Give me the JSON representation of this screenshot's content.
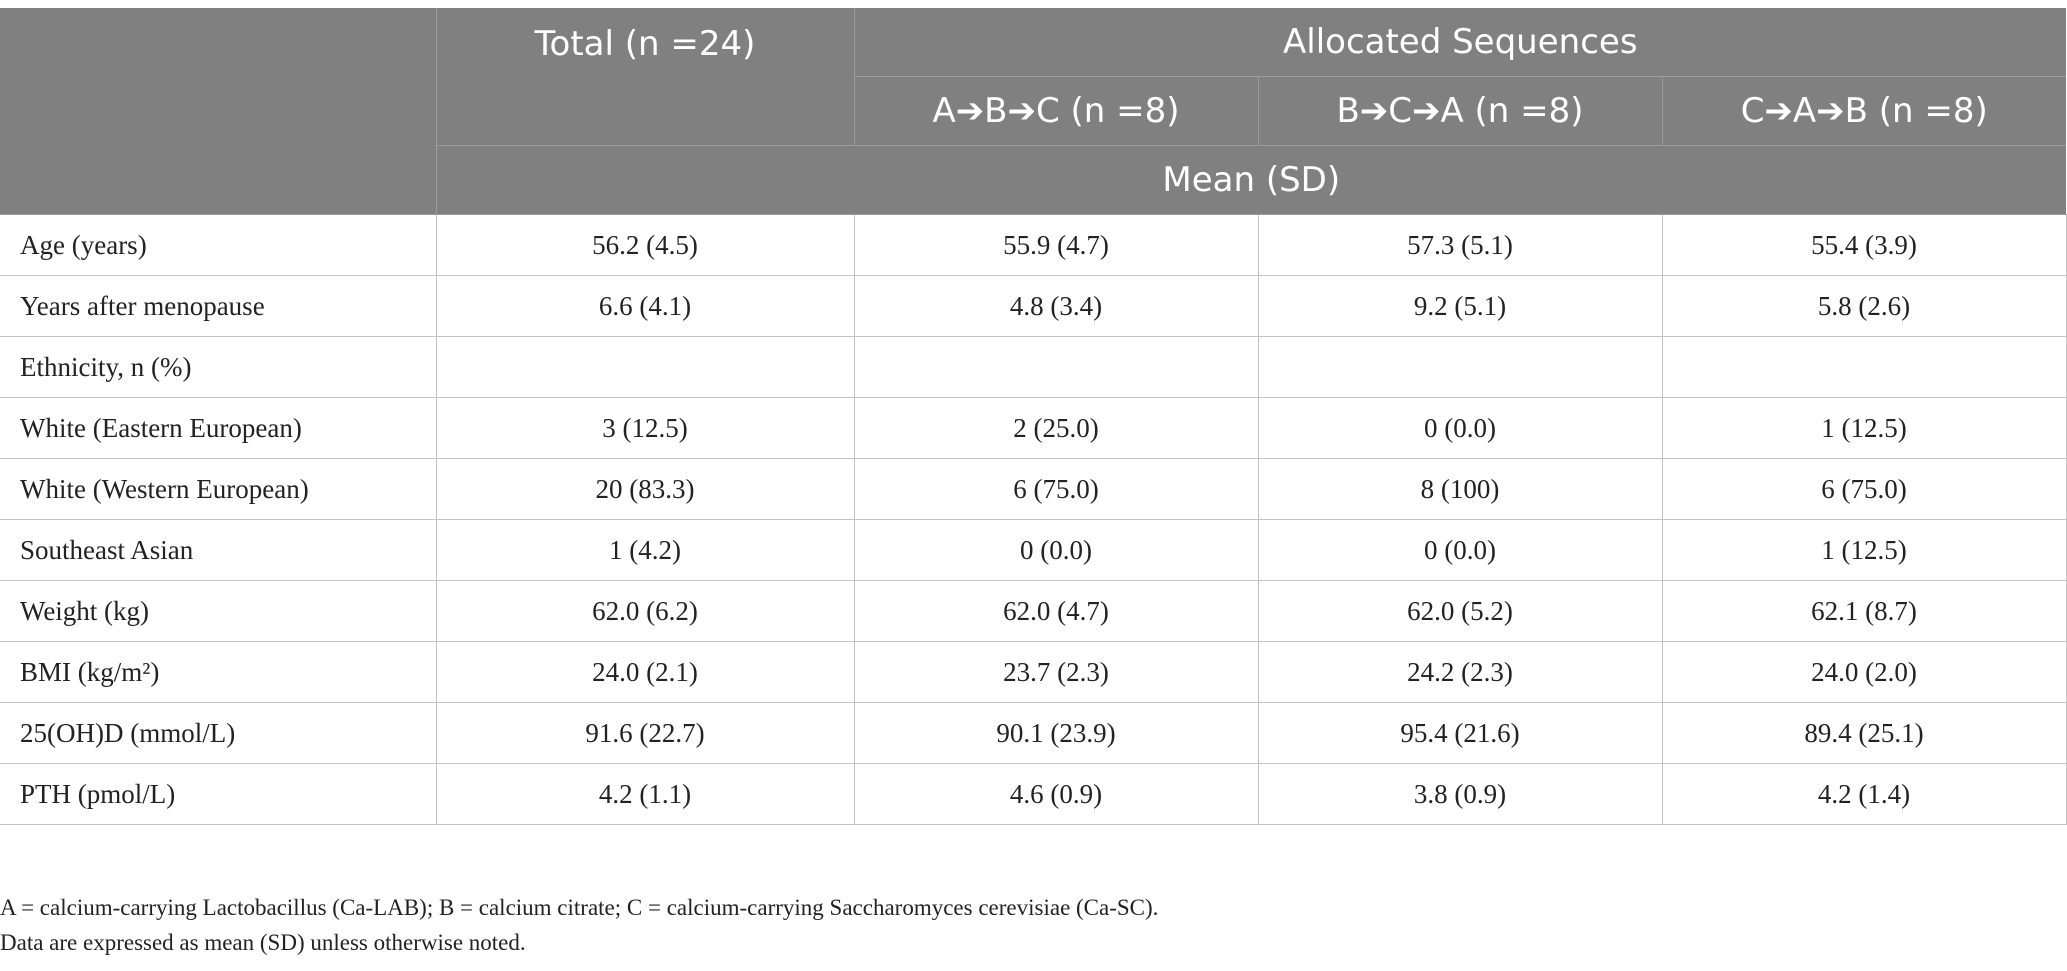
{
  "header": {
    "total": "Total (n =24)",
    "allocated": "Allocated Sequences",
    "seq_abc": "A➔B➔C (n =8)",
    "seq_bca": "B➔C➔A (n =8)",
    "seq_cab": "C➔A➔B (n =8)",
    "mean_sd": "Mean (SD)"
  },
  "rows": [
    {
      "label": "Age (years)",
      "total": "56.2 (4.5)",
      "abc": "55.9 (4.7)",
      "bca": "57.3 (5.1)",
      "cab": "55.4 (3.9)"
    },
    {
      "label": "Years after menopause",
      "total": "6.6 (4.1)",
      "abc": "4.8 (3.4)",
      "bca": "9.2 (5.1)",
      "cab": "5.8 (2.6)"
    },
    {
      "label": "Ethnicity, n (%)",
      "total": "",
      "abc": "",
      "bca": "",
      "cab": ""
    },
    {
      "label": "White (Eastern European)",
      "total": "3 (12.5)",
      "abc": "2 (25.0)",
      "bca": "0 (0.0)",
      "cab": "1 (12.5)"
    },
    {
      "label": "White (Western European)",
      "total": "20 (83.3)",
      "abc": "6 (75.0)",
      "bca": "8 (100)",
      "cab": "6 (75.0)"
    },
    {
      "label": "Southeast Asian",
      "total": "1 (4.2)",
      "abc": "0 (0.0)",
      "bca": "0 (0.0)",
      "cab": "1 (12.5)"
    },
    {
      "label": "Weight (kg)",
      "total": "62.0 (6.2)",
      "abc": "62.0 (4.7)",
      "bca": "62.0 (5.2)",
      "cab": "62.1 (8.7)"
    },
    {
      "label": "BMI (kg/m²)",
      "total": "24.0 (2.1)",
      "abc": "23.7 (2.3)",
      "bca": "24.2 (2.3)",
      "cab": "24.0 (2.0)"
    },
    {
      "label": "25(OH)D (mmol/L)",
      "total": "91.6 (22.7)",
      "abc": "90.1 (23.9)",
      "bca": "95.4 (21.6)",
      "cab": "89.4 (25.1)"
    },
    {
      "label": "PTH (pmol/L)",
      "total": "4.2 (1.1)",
      "abc": "4.6 (0.9)",
      "bca": "3.8 (0.9)",
      "cab": "4.2 (1.4)"
    }
  ],
  "notes": {
    "abbreviations": "A = calcium-carrying Lactobacillus (Ca-LAB); B = calcium citrate; C = calcium-carrying Saccharomyces cerevisiae (Ca-SC).",
    "expressed": "Data are expressed as mean (SD) unless otherwise noted."
  },
  "colors": {
    "header_bg": "#808080",
    "header_text": "#ffffff",
    "border": "#c4c4c4"
  }
}
